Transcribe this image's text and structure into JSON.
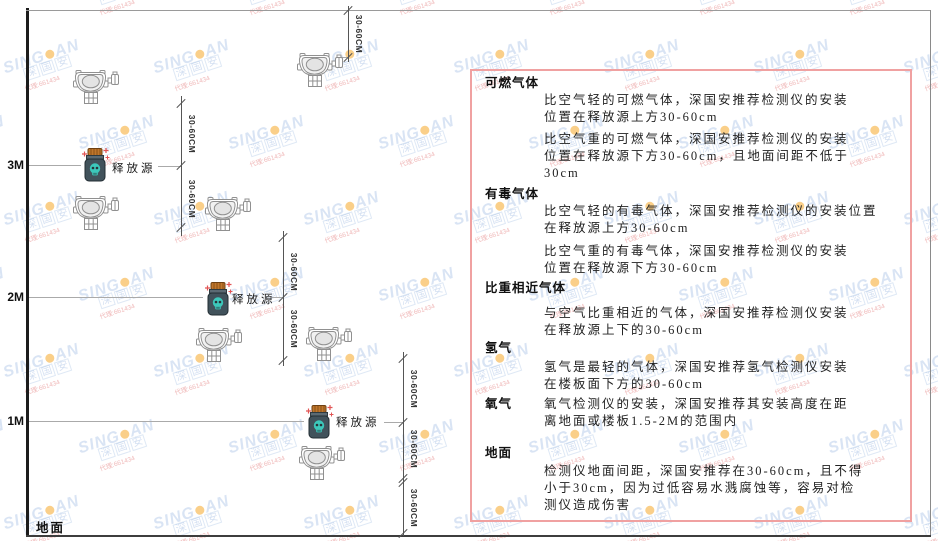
{
  "diagram": {
    "height_labels": [
      "3M",
      "2M",
      "1M"
    ],
    "ground_label": "地面",
    "release_source_label": "释放源",
    "dim_label": "30-60CM",
    "icons": [
      "gas-detector-icon",
      "release-source-icon"
    ]
  },
  "panel": {
    "sections": [
      {
        "heading": "可燃气体",
        "p1": "比空气轻的可燃气体，深国安推荐检测仪的安装\n位置在释放源上方30-60cm",
        "p2": "比空气重的可燃气体，深国安推荐检测仪的安装\n位置在释放源下方30-60cm，且地面间距不低于\n30cm"
      },
      {
        "heading": "有毒气体",
        "p1": "比空气轻的有毒气体，深国安推荐检测仪的安装位置\n在释放源上方30-60cm",
        "p2": "比空气重的有毒气体，深国安推荐检测仪的安装\n位置在释放源下方30-60cm"
      },
      {
        "heading": "比重相近气体",
        "p1": "与空气比重相近的气体，深国安推荐检测仪安装\n在释放源上下的30-60cm"
      },
      {
        "heading": "氢气",
        "p1": "氢气是最轻的气体，深国安推荐氢气检测仪安装\n在楼板面下方的30-60cm"
      },
      {
        "heading": "氧气",
        "p1": "氧气检测仪的安装，深国安推荐其安装高度在距\n离地面或楼板1.5-2M的范围内"
      },
      {
        "heading": "地面",
        "p1": "检测仪地面间距，深国安推荐在30-60cm，且不得\n小于30cm，因为过低容易水溅腐蚀等，容易对检\n测仪造成伤害"
      }
    ]
  },
  "watermark": {
    "brand_prefix": "SING",
    "brand_suffix": "AN",
    "cn": "深国安",
    "sub": "代理:661434"
  },
  "colors": {
    "panel_border": "#f0a1a1",
    "release_lid": "#c0762c",
    "release_body": "#41525b",
    "release_skull": "#3cc8bb",
    "watermark_blue": "#80a5da",
    "watermark_orange": "#f6a828",
    "detector_outline": "#909090"
  }
}
